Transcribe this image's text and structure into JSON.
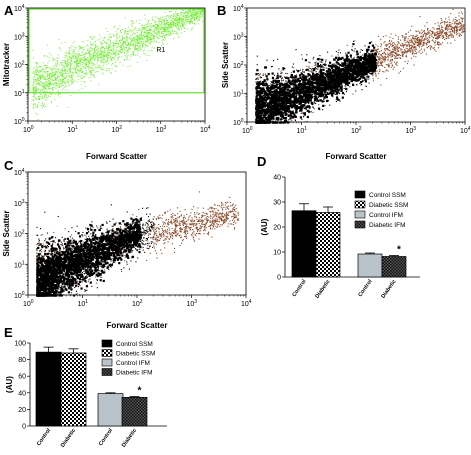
{
  "chart_data": [
    {
      "panel": "A",
      "type": "scatter",
      "xlabel": "Forward Scatter",
      "ylabel": "Mitotracker",
      "xscale": "log",
      "yscale": "log",
      "xlim": [
        1,
        10000
      ],
      "ylim": [
        1,
        10000
      ],
      "x_ticks": [
        "10^0",
        "10^1",
        "10^2",
        "10^3",
        "10^4"
      ],
      "y_ticks": [
        "10^0",
        "10^1",
        "10^2",
        "10^3",
        "10^4"
      ],
      "point_color": "#66ee22",
      "gate": {
        "label": "R1",
        "x_range": [
          1,
          10000
        ],
        "y_range": [
          10,
          10000
        ]
      },
      "population_trend": [
        [
          2,
          20
        ],
        [
          10,
          80
        ],
        [
          100,
          400
        ],
        [
          1000,
          1800
        ],
        [
          8000,
          8000
        ]
      ]
    },
    {
      "panel": "B",
      "type": "scatter",
      "xlabel": "Forward Scatter",
      "ylabel": "Side Scatter",
      "xscale": "log",
      "yscale": "log",
      "xlim": [
        1,
        10000
      ],
      "ylim": [
        1,
        10000
      ],
      "x_ticks": [
        "10^0",
        "10^1",
        "10^2",
        "10^3",
        "10^4"
      ],
      "y_ticks": [
        "10^0",
        "10^1",
        "10^2",
        "10^3",
        "10^4"
      ],
      "point_color": "#000000",
      "population_trend": [
        [
          1.5,
          3
        ],
        [
          10,
          12
        ],
        [
          100,
          80
        ],
        [
          1000,
          500
        ],
        [
          10000,
          3000
        ]
      ]
    },
    {
      "panel": "C",
      "type": "scatter",
      "xlabel": "Forward Scatter",
      "ylabel": "Side Scatter",
      "xscale": "log",
      "yscale": "log",
      "xlim": [
        1,
        10000
      ],
      "ylim": [
        1,
        10000
      ],
      "x_ticks": [
        "10^0",
        "10^1",
        "10^2",
        "10^3",
        "10^4"
      ],
      "y_ticks": [
        "10^0",
        "10^1",
        "10^2",
        "10^3",
        "10^4"
      ],
      "point_color": "#000000",
      "population_trend": [
        [
          1.5,
          3
        ],
        [
          10,
          15
        ],
        [
          100,
          100
        ],
        [
          1000,
          200
        ],
        [
          7000,
          500
        ]
      ]
    },
    {
      "panel": "D",
      "type": "bar",
      "ylabel": "(AU)",
      "ylim": [
        0,
        40
      ],
      "y_ticks": [
        0,
        10,
        20,
        30,
        40
      ],
      "categories": [
        "Control",
        "Diabetic",
        "Control",
        "Diabetic"
      ],
      "groups": [
        "SSM",
        "IFM"
      ],
      "values": [
        26.5,
        25.8,
        9.2,
        8.2
      ],
      "errors": [
        2.8,
        2.2,
        0.4,
        0.4
      ],
      "significance": [
        "",
        "",
        "",
        "*"
      ],
      "legend": [
        "Control  SSM",
        "Diabetic  SSM",
        "Control IFM",
        "Diabetic IFM"
      ]
    },
    {
      "panel": "E",
      "type": "bar",
      "ylabel": "(AU)",
      "ylim": [
        0,
        100
      ],
      "y_ticks": [
        0,
        20,
        40,
        60,
        80,
        100
      ],
      "categories": [
        "Control",
        "Diabetic",
        "Control",
        "Diabetic"
      ],
      "groups": [
        "SSM",
        "IFM"
      ],
      "values": [
        89,
        88,
        39,
        34.5
      ],
      "errors": [
        6,
        5,
        1,
        1.2
      ],
      "significance": [
        "",
        "",
        "",
        "*"
      ],
      "legend": [
        "Control SSM",
        "Diabetic  SSM",
        "Control IFM",
        "Diabetic IFM"
      ]
    }
  ]
}
